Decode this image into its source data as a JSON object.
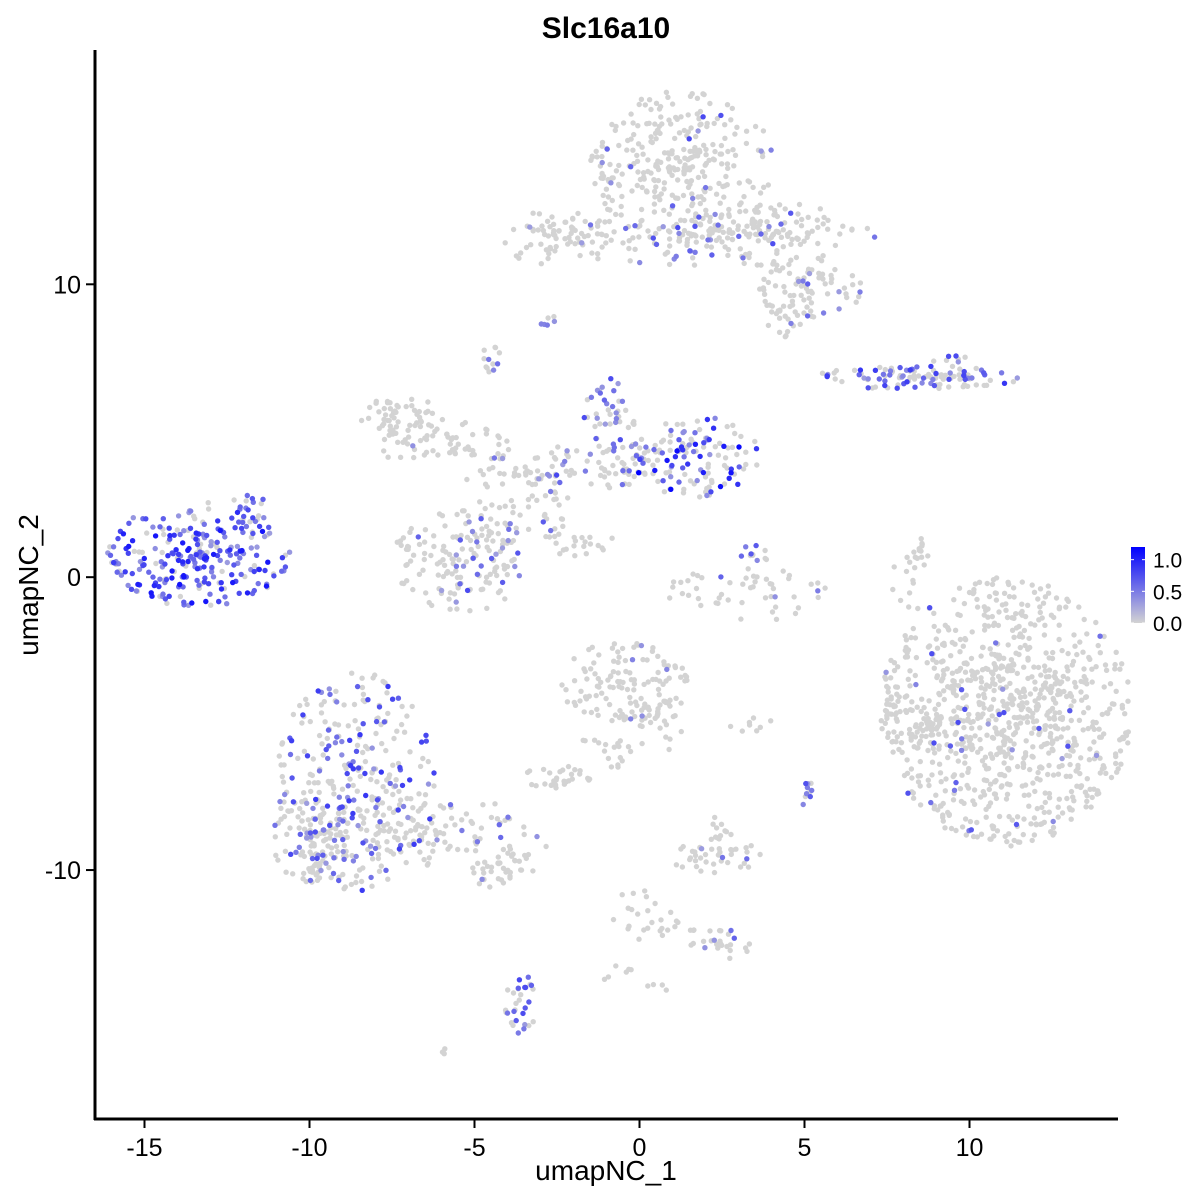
{
  "chart_data": {
    "type": "scatter",
    "title": "Slc16a10",
    "xlabel": "umapNC_1",
    "ylabel": "umapNC_2",
    "xlim": [
      -16.5,
      14.5
    ],
    "ylim": [
      -18.5,
      18
    ],
    "x_ticks": [
      -15,
      -10,
      -5,
      0,
      5,
      10
    ],
    "x_tick_labels": [
      "-15",
      "-10",
      "-5",
      "0",
      "5",
      "10"
    ],
    "y_ticks": [
      -10,
      0,
      10
    ],
    "y_tick_labels": [
      "-10",
      "0",
      "10"
    ],
    "grid": false,
    "legend": {
      "position": "right",
      "type": "colorbar",
      "min": 0.0,
      "max": 1.2,
      "ticks": [
        1.0,
        0.5,
        0.0
      ],
      "tick_labels": [
        "1.0",
        "0.5",
        "0.0"
      ],
      "low_color": "#d3d3d3",
      "high_color": "#0000ff"
    },
    "point_color_low": "#d3d3d3",
    "point_color_high": "#0000ff",
    "clusters": [
      {
        "cx": -13.4,
        "cy": 0.8,
        "rx": 1.4,
        "ry": 0.9,
        "n": 260,
        "expr_frac": 0.8,
        "expr_max": 1.1
      },
      {
        "cx": -11.8,
        "cy": 2.3,
        "rx": 0.3,
        "ry": 0.4,
        "n": 15,
        "expr_frac": 0.6,
        "expr_max": 0.8
      },
      {
        "cx": -8.6,
        "cy": -7.0,
        "rx": 1.2,
        "ry": 1.9,
        "n": 300,
        "expr_frac": 0.3,
        "expr_max": 0.9
      },
      {
        "cx": -9.8,
        "cy": -8.9,
        "rx": 0.7,
        "ry": 0.8,
        "n": 100,
        "expr_frac": 0.3,
        "expr_max": 0.8
      },
      {
        "cx": -6.2,
        "cy": -8.8,
        "rx": 2.0,
        "ry": 0.6,
        "n": 120,
        "expr_frac": 0.1,
        "expr_max": 0.7
      },
      {
        "cx": -4.2,
        "cy": -10.1,
        "rx": 0.6,
        "ry": 0.25,
        "n": 30,
        "expr_frac": 0.1,
        "expr_max": 0.7
      },
      {
        "cx": -3.6,
        "cy": -14.6,
        "rx": 0.25,
        "ry": 0.6,
        "n": 30,
        "expr_frac": 0.4,
        "expr_max": 0.8
      },
      {
        "cx": -6.0,
        "cy": -16.2,
        "rx": 0.1,
        "ry": 0.1,
        "n": 3,
        "expr_frac": 0.0,
        "expr_max": 0.5
      },
      {
        "cx": -5.5,
        "cy": 0.5,
        "rx": 1.0,
        "ry": 0.9,
        "n": 130,
        "expr_frac": 0.2,
        "expr_max": 0.8
      },
      {
        "cx": -4.4,
        "cy": 1.5,
        "rx": 0.5,
        "ry": 0.7,
        "n": 40,
        "expr_frac": 0.2,
        "expr_max": 0.7
      },
      {
        "cx": -7.2,
        "cy": 5.4,
        "rx": 0.7,
        "ry": 0.4,
        "n": 60,
        "expr_frac": 0.0,
        "expr_max": 0.5
      },
      {
        "cx": -5.6,
        "cy": 4.5,
        "rx": 1.2,
        "ry": 0.4,
        "n": 50,
        "expr_frac": 0.05,
        "expr_max": 0.5
      },
      {
        "cx": -3.8,
        "cy": 3.6,
        "rx": 0.8,
        "ry": 0.3,
        "n": 30,
        "expr_frac": 0.1,
        "expr_max": 0.6
      },
      {
        "cx": -1.2,
        "cy": 3.8,
        "rx": 1.3,
        "ry": 0.4,
        "n": 80,
        "expr_frac": 0.25,
        "expr_max": 0.8
      },
      {
        "cx": -0.9,
        "cy": 5.6,
        "rx": 0.4,
        "ry": 0.6,
        "n": 40,
        "expr_frac": 0.5,
        "expr_max": 0.8
      },
      {
        "cx": 1.7,
        "cy": 4.1,
        "rx": 1.0,
        "ry": 0.7,
        "n": 120,
        "expr_frac": 0.45,
        "expr_max": 1.2
      },
      {
        "cx": -2.8,
        "cy": 2.3,
        "rx": 0.4,
        "ry": 0.5,
        "n": 25,
        "expr_frac": 0.15,
        "expr_max": 0.7
      },
      {
        "cx": -1.8,
        "cy": 1.2,
        "rx": 0.6,
        "ry": 0.25,
        "n": 20,
        "expr_frac": 0.0,
        "expr_max": 0.5
      },
      {
        "cx": -4.5,
        "cy": 7.4,
        "rx": 0.15,
        "ry": 0.25,
        "n": 12,
        "expr_frac": 0.5,
        "expr_max": 0.6
      },
      {
        "cx": -2.8,
        "cy": 8.8,
        "rx": 0.15,
        "ry": 0.1,
        "n": 6,
        "expr_frac": 0.5,
        "expr_max": 0.6
      },
      {
        "cx": -2.4,
        "cy": 11.6,
        "rx": 0.9,
        "ry": 0.5,
        "n": 70,
        "expr_frac": 0.05,
        "expr_max": 0.6
      },
      {
        "cx": 1.3,
        "cy": 14.0,
        "rx": 1.4,
        "ry": 1.3,
        "n": 300,
        "expr_frac": 0.05,
        "expr_max": 0.8
      },
      {
        "cx": 2.5,
        "cy": 11.6,
        "rx": 2.5,
        "ry": 0.5,
        "n": 140,
        "expr_frac": 0.15,
        "expr_max": 0.8
      },
      {
        "cx": 4.0,
        "cy": 12.0,
        "rx": 1.2,
        "ry": 0.4,
        "n": 60,
        "expr_frac": 0.1,
        "expr_max": 0.7
      },
      {
        "cx": 5.2,
        "cy": 9.9,
        "rx": 0.8,
        "ry": 0.5,
        "n": 70,
        "expr_frac": 0.15,
        "expr_max": 0.7
      },
      {
        "cx": 4.5,
        "cy": 9.0,
        "rx": 0.4,
        "ry": 0.4,
        "n": 25,
        "expr_frac": 0.05,
        "expr_max": 0.6
      },
      {
        "cx": 8.4,
        "cy": 6.8,
        "rx": 1.6,
        "ry": 0.2,
        "n": 90,
        "expr_frac": 0.45,
        "expr_max": 0.9
      },
      {
        "cx": 9.4,
        "cy": 7.0,
        "rx": 0.5,
        "ry": 0.3,
        "n": 30,
        "expr_frac": 0.4,
        "expr_max": 0.9
      },
      {
        "cx": 3.2,
        "cy": -0.6,
        "rx": 1.3,
        "ry": 0.5,
        "n": 50,
        "expr_frac": 0.1,
        "expr_max": 0.7
      },
      {
        "cx": 3.3,
        "cy": 0.8,
        "rx": 0.3,
        "ry": 0.3,
        "n": 12,
        "expr_frac": 0.5,
        "expr_max": 0.7
      },
      {
        "cx": 8.2,
        "cy": 0.2,
        "rx": 0.3,
        "ry": 0.7,
        "n": 25,
        "expr_frac": 0.0,
        "expr_max": 0.5
      },
      {
        "cx": 11.1,
        "cy": -4.6,
        "rx": 1.9,
        "ry": 2.3,
        "n": 900,
        "expr_frac": 0.03,
        "expr_max": 0.8
      },
      {
        "cx": 8.5,
        "cy": -4.8,
        "rx": 0.6,
        "ry": 0.6,
        "n": 40,
        "expr_frac": 0.02,
        "expr_max": 0.6
      },
      {
        "cx": -0.5,
        "cy": -3.6,
        "rx": 1.0,
        "ry": 0.7,
        "n": 120,
        "expr_frac": 0.03,
        "expr_max": 0.6
      },
      {
        "cx": 0.6,
        "cy": -4.9,
        "rx": 0.4,
        "ry": 0.6,
        "n": 30,
        "expr_frac": 0.0,
        "expr_max": 0.5
      },
      {
        "cx": -2.5,
        "cy": -6.9,
        "rx": 0.5,
        "ry": 0.3,
        "n": 30,
        "expr_frac": 0.0,
        "expr_max": 0.5
      },
      {
        "cx": -1.0,
        "cy": -5.5,
        "rx": 0.6,
        "ry": 0.6,
        "n": 20,
        "expr_frac": 0.0,
        "expr_max": 0.5
      },
      {
        "cx": 5.1,
        "cy": -7.3,
        "rx": 0.12,
        "ry": 0.3,
        "n": 10,
        "expr_frac": 0.6,
        "expr_max": 0.8
      },
      {
        "cx": 3.3,
        "cy": -5.0,
        "rx": 0.4,
        "ry": 0.15,
        "n": 8,
        "expr_frac": 0.0,
        "expr_max": 0.5
      },
      {
        "cx": 2.3,
        "cy": -9.5,
        "rx": 0.7,
        "ry": 0.3,
        "n": 40,
        "expr_frac": 0.05,
        "expr_max": 0.6
      },
      {
        "cx": 2.5,
        "cy": -8.6,
        "rx": 0.2,
        "ry": 0.3,
        "n": 10,
        "expr_frac": 0.0,
        "expr_max": 0.5
      },
      {
        "cx": 2.2,
        "cy": -12.5,
        "rx": 0.6,
        "ry": 0.3,
        "n": 25,
        "expr_frac": 0.2,
        "expr_max": 0.7
      },
      {
        "cx": -0.1,
        "cy": -11.5,
        "rx": 0.4,
        "ry": 0.5,
        "n": 15,
        "expr_frac": 0.2,
        "expr_max": 0.6
      },
      {
        "cx": 0.8,
        "cy": -12.0,
        "rx": 0.5,
        "ry": 0.3,
        "n": 12,
        "expr_frac": 0.0,
        "expr_max": 0.5
      },
      {
        "cx": -0.6,
        "cy": -13.5,
        "rx": 0.3,
        "ry": 0.2,
        "n": 6,
        "expr_frac": 0.0,
        "expr_max": 0.5
      },
      {
        "cx": 0.6,
        "cy": -14.0,
        "rx": 0.2,
        "ry": 0.2,
        "n": 4,
        "expr_frac": 0.0,
        "expr_max": 0.5
      }
    ]
  }
}
